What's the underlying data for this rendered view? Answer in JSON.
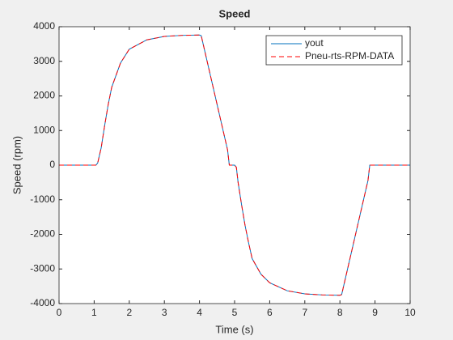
{
  "chart_data": {
    "type": "line",
    "title": "Speed",
    "xlabel": "Time (s)",
    "ylabel": "Speed (rpm)",
    "x": [
      0,
      0.5,
      1,
      1.05,
      1.1,
      1.2,
      1.3,
      1.4,
      1.5,
      1.75,
      2,
      2.5,
      3,
      3.5,
      4,
      4.05,
      4.2,
      4.4,
      4.6,
      4.8,
      4.85,
      5,
      5.05,
      5.1,
      5.2,
      5.3,
      5.4,
      5.5,
      5.75,
      6,
      6.5,
      7,
      7.5,
      8,
      8.05,
      8.2,
      8.4,
      8.6,
      8.8,
      8.85,
      9,
      9.5,
      10
    ],
    "series": [
      {
        "name": "yout",
        "color": "#0072bd",
        "dash": "solid",
        "values": [
          0,
          0,
          0,
          0,
          60,
          500,
          1150,
          1750,
          2250,
          2950,
          3350,
          3620,
          3720,
          3750,
          3760,
          3740,
          3080,
          2200,
          1320,
          440,
          0,
          0,
          -60,
          -500,
          -1150,
          -1750,
          -2250,
          -2700,
          -3150,
          -3400,
          -3630,
          -3720,
          -3750,
          -3760,
          -3740,
          -3080,
          -2200,
          -1320,
          -440,
          0,
          0,
          0,
          0
        ]
      },
      {
        "name": "Pneu-rts-RPM-DATA",
        "color": "#ff0000",
        "dash": "dashed",
        "values": [
          0,
          0,
          0,
          0,
          60,
          500,
          1150,
          1750,
          2250,
          2950,
          3350,
          3620,
          3720,
          3750,
          3760,
          3740,
          3080,
          2200,
          1320,
          440,
          0,
          0,
          -60,
          -500,
          -1150,
          -1750,
          -2250,
          -2700,
          -3150,
          -3400,
          -3630,
          -3720,
          -3750,
          -3760,
          -3740,
          -3080,
          -2200,
          -1320,
          -440,
          0,
          0,
          0,
          0
        ]
      }
    ],
    "xlim": [
      0,
      10
    ],
    "xticks": [
      0,
      1,
      2,
      3,
      4,
      5,
      6,
      7,
      8,
      9,
      10
    ],
    "ylim": [
      -4000,
      4000
    ],
    "yticks": [
      -4000,
      -3000,
      -2000,
      -1000,
      0,
      1000,
      2000,
      3000,
      4000
    ],
    "legend": "northeast",
    "grid": false
  }
}
